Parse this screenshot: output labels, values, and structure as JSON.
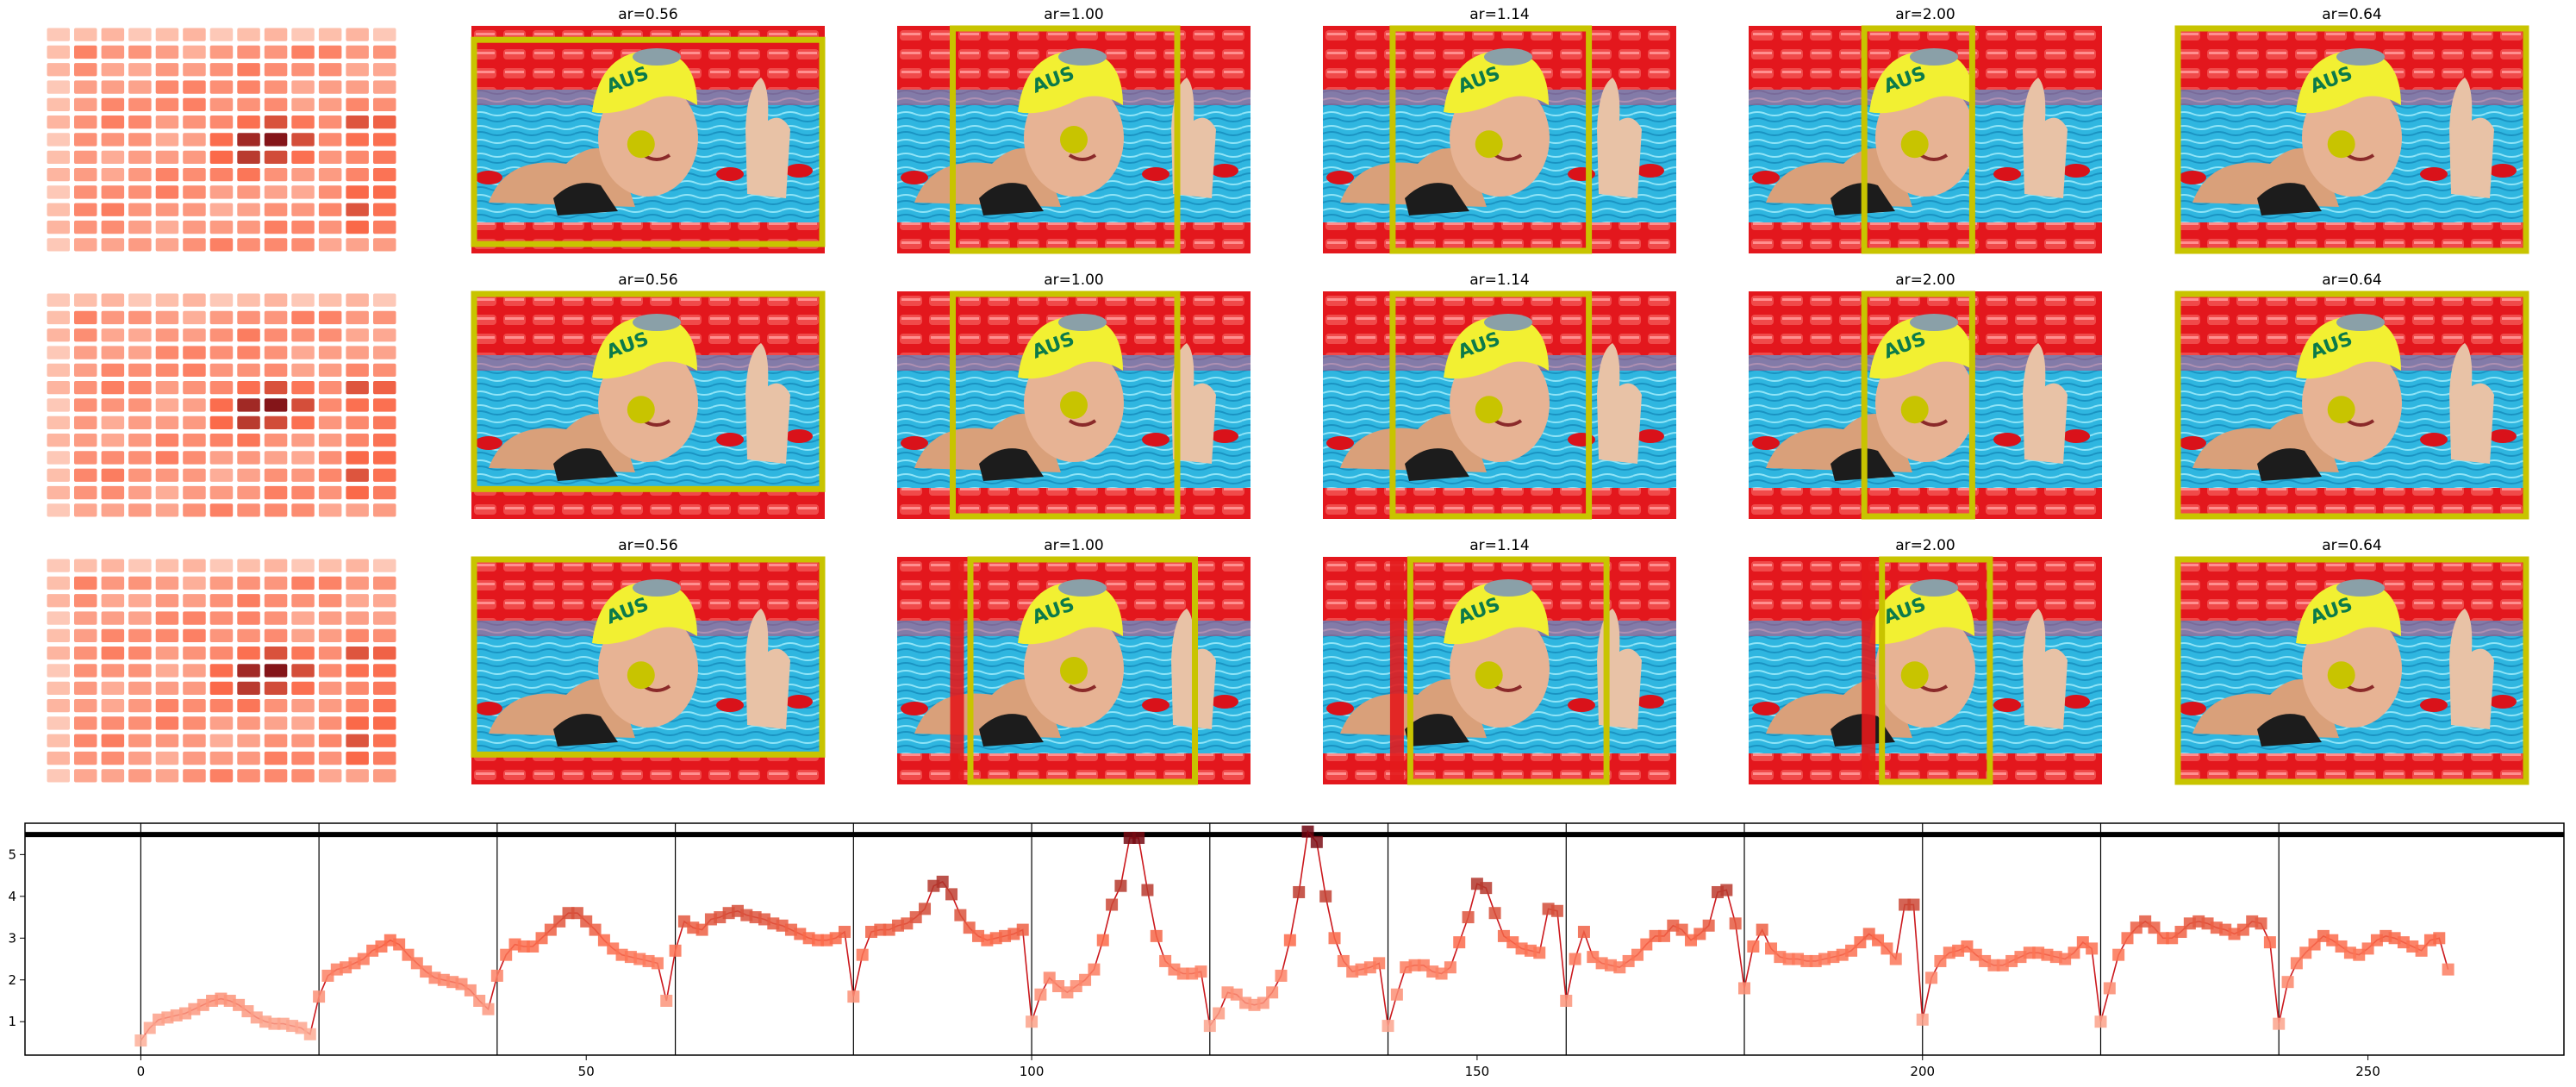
{
  "figure": {
    "panel_titles": [
      "ar=0.56",
      "ar=1.00",
      "ar=1.14",
      "ar=2.00",
      "ar=0.64"
    ],
    "rows": 3,
    "photo_subject": "swimmer in yellow AUS cap in pool lanes",
    "cap_text": "AUS",
    "colors": {
      "highlight_box": "#c8c400",
      "crop_marker": "#e31a1c",
      "heat_dark": "#67000d",
      "heat_light": "#fee0d2"
    }
  },
  "chart_data": {
    "type": "line",
    "xlabel": "",
    "ylabel": "",
    "xlim": [
      -13,
      272
    ],
    "ylim": [
      0.2,
      5.75
    ],
    "x_ticks": [
      0,
      50,
      100,
      150,
      200,
      250
    ],
    "y_ticks": [
      1,
      2,
      3,
      4,
      5
    ],
    "threshold_line": 5.48,
    "segment_boundaries": [
      0,
      20,
      40,
      60,
      80,
      100,
      120,
      140,
      160,
      180,
      200,
      220,
      240
    ],
    "series": [
      {
        "values": [
          0.55,
          0.85,
          1.05,
          1.1,
          1.15,
          1.2,
          1.3,
          1.4,
          1.5,
          1.55,
          1.5,
          1.4,
          1.25,
          1.1,
          1.0,
          0.95,
          0.95,
          0.9,
          0.85,
          0.7,
          1.6,
          2.1,
          2.25,
          2.3,
          2.4,
          2.5,
          2.7,
          2.8,
          2.95,
          2.85,
          2.6,
          2.4,
          2.2,
          2.05,
          2.0,
          1.95,
          1.9,
          1.75,
          1.5,
          1.3,
          2.1,
          2.6,
          2.85,
          2.8,
          2.8,
          3.0,
          3.2,
          3.4,
          3.6,
          3.6,
          3.4,
          3.2,
          2.95,
          2.75,
          2.6,
          2.55,
          2.5,
          2.45,
          2.4,
          1.5,
          2.7,
          3.4,
          3.25,
          3.2,
          3.45,
          3.5,
          3.6,
          3.65,
          3.55,
          3.5,
          3.45,
          3.35,
          3.3,
          3.2,
          3.1,
          3.0,
          2.95,
          2.95,
          3.0,
          3.15,
          1.6,
          2.6,
          3.15,
          3.2,
          3.2,
          3.3,
          3.35,
          3.5,
          3.7,
          4.25,
          4.35,
          4.05,
          3.55,
          3.25,
          3.05,
          2.95,
          3.0,
          3.05,
          3.1,
          3.2,
          1.0,
          1.65,
          2.05,
          1.85,
          1.7,
          1.85,
          2.0,
          2.25,
          2.95,
          3.8,
          4.25,
          5.4,
          5.4,
          4.15,
          3.05,
          2.45,
          2.25,
          2.15,
          2.15,
          2.2,
          0.9,
          1.2,
          1.7,
          1.65,
          1.45,
          1.4,
          1.45,
          1.7,
          2.1,
          2.95,
          4.1,
          5.55,
          5.3,
          4.0,
          3.0,
          2.45,
          2.2,
          2.25,
          2.3,
          2.4,
          0.9,
          1.65,
          2.3,
          2.35,
          2.35,
          2.2,
          2.15,
          2.3,
          2.9,
          3.5,
          4.3,
          4.2,
          3.6,
          3.05,
          2.9,
          2.75,
          2.7,
          2.65,
          3.7,
          3.65,
          1.5,
          2.5,
          3.15,
          2.55,
          2.4,
          2.35,
          2.3,
          2.45,
          2.6,
          2.85,
          3.05,
          3.05,
          3.3,
          3.2,
          2.95,
          3.1,
          3.3,
          4.1,
          4.15,
          3.35,
          1.8,
          2.8,
          3.2,
          2.75,
          2.55,
          2.5,
          2.5,
          2.45,
          2.45,
          2.5,
          2.55,
          2.6,
          2.7,
          2.9,
          3.1,
          2.95,
          2.75,
          2.5,
          3.8,
          3.8,
          1.05,
          2.05,
          2.45,
          2.65,
          2.7,
          2.8,
          2.6,
          2.45,
          2.35,
          2.35,
          2.45,
          2.55,
          2.65,
          2.65,
          2.6,
          2.55,
          2.5,
          2.65,
          2.9,
          2.75,
          1.0,
          1.8,
          2.6,
          3.0,
          3.25,
          3.4,
          3.25,
          3.0,
          3.0,
          3.15,
          3.35,
          3.4,
          3.35,
          3.25,
          3.2,
          3.1,
          3.2,
          3.4,
          3.35,
          2.9,
          0.95,
          1.95,
          2.4,
          2.65,
          2.85,
          3.05,
          2.95,
          2.8,
          2.65,
          2.6,
          2.75,
          2.95,
          3.05,
          3.0,
          2.9,
          2.8,
          2.7,
          2.95,
          3.0,
          2.25
        ]
      }
    ]
  }
}
